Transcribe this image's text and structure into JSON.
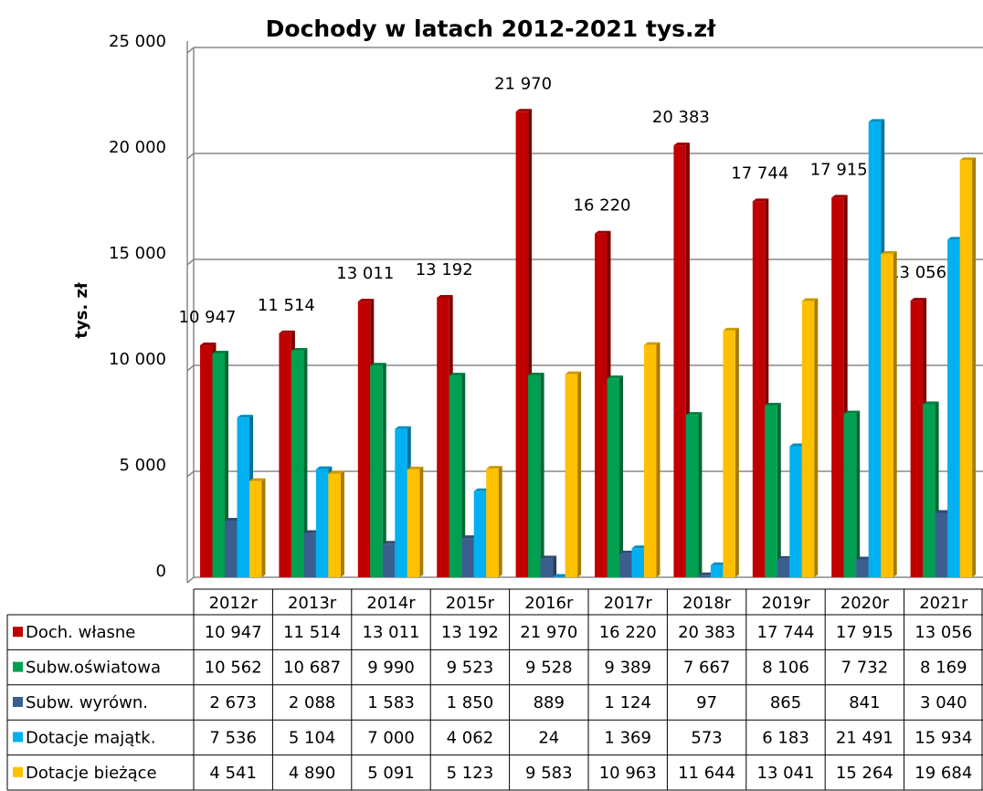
{
  "chart_data": {
    "type": "bar",
    "title": "Dochody w latach 2012-2021 tys.zł",
    "y_label": "tys. zł",
    "categories": [
      "2012r",
      "2013r",
      "2014r",
      "2015r",
      "2016r",
      "2017r",
      "2018r",
      "2019r",
      "2020r",
      "2021r"
    ],
    "ylim": [
      0,
      25000
    ],
    "yticks": [
      0,
      {
        "value": 5000,
        "label": "5 000"
      },
      {
        "value": 10000,
        "label": "10 000"
      },
      {
        "value": 15000,
        "label": "15 000"
      },
      {
        "value": 20000,
        "label": "20 000"
      },
      {
        "value": 25000,
        "label": "25 000"
      }
    ],
    "grid": true,
    "series": [
      {
        "name": "Doch. własne",
        "color": "#c00000",
        "values": [
          10947,
          11514,
          13011,
          13192,
          21970,
          16220,
          20383,
          17744,
          17915,
          13056
        ],
        "value_labels": [
          "10 947",
          "11 514",
          "13 011",
          "13 192",
          "21 970",
          "16 220",
          "20 383",
          "17 744",
          "17 915",
          "13 056"
        ]
      },
      {
        "name": "Subw.oświatowa",
        "color": "#00a050",
        "values": [
          10562,
          10687,
          9990,
          9523,
          9528,
          9389,
          7667,
          8106,
          7732,
          8169
        ],
        "value_labels": [
          "10 562",
          "10 687",
          "9 990",
          "9 523",
          "9 528",
          "9 389",
          "7 667",
          "8 106",
          "7 732",
          "8 169"
        ]
      },
      {
        "name": "Subw. wyrówn.",
        "color": "#3a5f8f",
        "values": [
          2673,
          2088,
          1583,
          1850,
          889,
          1124,
          97,
          865,
          841,
          3040
        ],
        "value_labels": [
          "2 673",
          "2 088",
          "1 583",
          "1 850",
          "889",
          "1 124",
          "97",
          "865",
          "841",
          "3 040"
        ]
      },
      {
        "name": "Dotacje majątk.",
        "color": "#00b0f0",
        "values": [
          7536,
          5104,
          7000,
          4062,
          24,
          1369,
          573,
          6183,
          21491,
          15934
        ],
        "value_labels": [
          "7 536",
          "5 104",
          "7 000",
          "4 062",
          "24",
          "1 369",
          "573",
          "6 183",
          "21 491",
          "15 934"
        ]
      },
      {
        "name": "Dotacje bieżące",
        "color": "#ffc000",
        "values": [
          4541,
          4890,
          5091,
          5123,
          9583,
          10963,
          11644,
          13041,
          15264,
          19684
        ],
        "value_labels": [
          "4 541",
          "4 890",
          "5 091",
          "5 123",
          "9 583",
          "10 963",
          "11 644",
          "13 041",
          "15 264",
          "19 684"
        ]
      }
    ]
  }
}
